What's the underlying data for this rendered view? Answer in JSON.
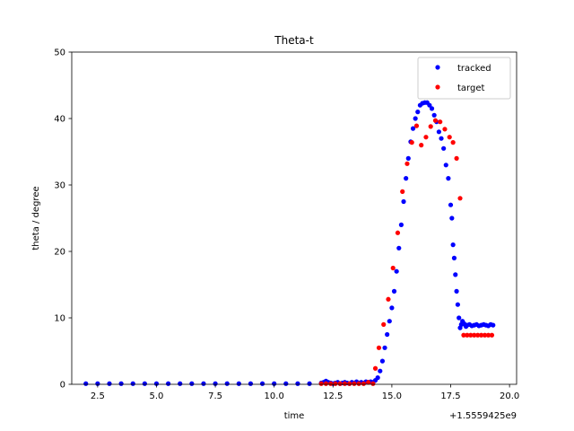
{
  "chart_data": {
    "type": "scatter",
    "title": "Theta-t",
    "xlabel": "time",
    "ylabel": "theta / degree",
    "x_offset_text": "+1.5559425e9",
    "xlim": [
      1.4,
      20.3
    ],
    "ylim": [
      0,
      50
    ],
    "x_ticks": [
      2.5,
      5.0,
      7.5,
      10.0,
      12.5,
      15.0,
      17.5,
      20.0
    ],
    "x_tick_labels": [
      "2.5",
      "5.0",
      "7.5",
      "10.0",
      "12.5",
      "15.0",
      "17.5",
      "20.0"
    ],
    "y_ticks": [
      0,
      10,
      20,
      30,
      40,
      50
    ],
    "y_tick_labels": [
      "0",
      "10",
      "20",
      "30",
      "40",
      "50"
    ],
    "grid": false,
    "legend_position": "top-right",
    "series": [
      {
        "name": "tracked",
        "color": "#0000ff",
        "marker": "dot",
        "x": [
          2.0,
          2.5,
          3.0,
          3.5,
          4.0,
          4.5,
          5.0,
          5.5,
          6.0,
          6.5,
          7.0,
          7.5,
          8.0,
          8.5,
          9.0,
          9.5,
          10.0,
          10.5,
          11.0,
          11.5,
          12.0,
          12.1,
          12.2,
          12.3,
          12.4,
          12.5,
          12.6,
          12.7,
          12.8,
          12.9,
          13.0,
          13.1,
          13.2,
          13.3,
          13.4,
          13.5,
          13.6,
          13.7,
          13.8,
          13.9,
          14.0,
          14.1,
          14.2,
          14.3,
          14.4,
          14.5,
          14.6,
          14.7,
          14.8,
          14.9,
          15.0,
          15.1,
          15.2,
          15.3,
          15.4,
          15.5,
          15.6,
          15.7,
          15.8,
          15.9,
          16.0,
          16.1,
          16.2,
          16.3,
          16.4,
          16.5,
          16.6,
          16.7,
          16.8,
          16.9,
          17.0,
          17.1,
          17.2,
          17.3,
          17.4,
          17.5,
          17.55,
          17.6,
          17.65,
          17.7,
          17.75,
          17.8,
          17.85,
          17.9,
          17.95,
          18.0,
          18.05,
          18.1,
          18.15,
          18.2,
          18.3,
          18.4,
          18.5,
          18.6,
          18.7,
          18.8,
          18.9,
          19.0,
          19.1,
          19.2,
          19.3
        ],
        "y": [
          0.1,
          0.1,
          0.1,
          0.1,
          0.1,
          0.1,
          0.1,
          0.1,
          0.1,
          0.1,
          0.1,
          0.1,
          0.1,
          0.1,
          0.1,
          0.1,
          0.1,
          0.1,
          0.1,
          0.1,
          0.2,
          0.3,
          0.5,
          0.3,
          0.2,
          0.1,
          0.2,
          0.3,
          0.1,
          0.2,
          0.3,
          0.2,
          0.1,
          0.3,
          0.2,
          0.4,
          0.2,
          0.3,
          0.2,
          0.4,
          0.3,
          0.4,
          0.3,
          0.6,
          1.0,
          2.0,
          3.5,
          5.5,
          7.5,
          9.5,
          11.5,
          14.0,
          17.0,
          20.5,
          24.0,
          27.5,
          31.0,
          34.0,
          36.5,
          38.5,
          40.0,
          41.0,
          42.0,
          42.3,
          42.4,
          42.4,
          42.0,
          41.5,
          40.5,
          39.5,
          38.0,
          37.0,
          35.5,
          33.0,
          31.0,
          27.0,
          25.0,
          21.0,
          19.0,
          16.5,
          14.0,
          12.0,
          10.0,
          8.5,
          9.0,
          9.5,
          9.2,
          9.0,
          8.7,
          8.9,
          9.0,
          8.8,
          8.9,
          9.0,
          8.8,
          8.9,
          9.0,
          8.9,
          8.8,
          9.0,
          8.9
        ]
      },
      {
        "name": "target",
        "color": "#ff0000",
        "marker": "dot",
        "x": [
          12.0,
          12.2,
          12.4,
          12.6,
          12.8,
          13.0,
          13.2,
          13.4,
          13.6,
          13.8,
          14.0,
          14.2,
          14.3,
          14.45,
          14.65,
          14.85,
          15.05,
          15.25,
          15.45,
          15.65,
          15.85,
          16.05,
          16.25,
          16.45,
          16.65,
          16.85,
          17.05,
          17.25,
          17.45,
          17.6,
          17.75,
          17.9,
          18.05,
          18.2,
          18.35,
          18.5,
          18.65,
          18.8,
          18.95,
          19.1,
          19.25
        ],
        "y": [
          0.1,
          0.1,
          0.1,
          0.1,
          0.1,
          0.1,
          0.1,
          0.1,
          0.1,
          0.1,
          0.3,
          0.1,
          2.4,
          5.5,
          9.0,
          12.8,
          17.5,
          22.8,
          29.0,
          33.2,
          36.4,
          38.9,
          36.0,
          37.2,
          38.8,
          39.7,
          39.5,
          38.4,
          37.2,
          36.4,
          34.0,
          28.0,
          7.4,
          7.4,
          7.4,
          7.4,
          7.4,
          7.4,
          7.4,
          7.4,
          7.4
        ]
      }
    ]
  }
}
